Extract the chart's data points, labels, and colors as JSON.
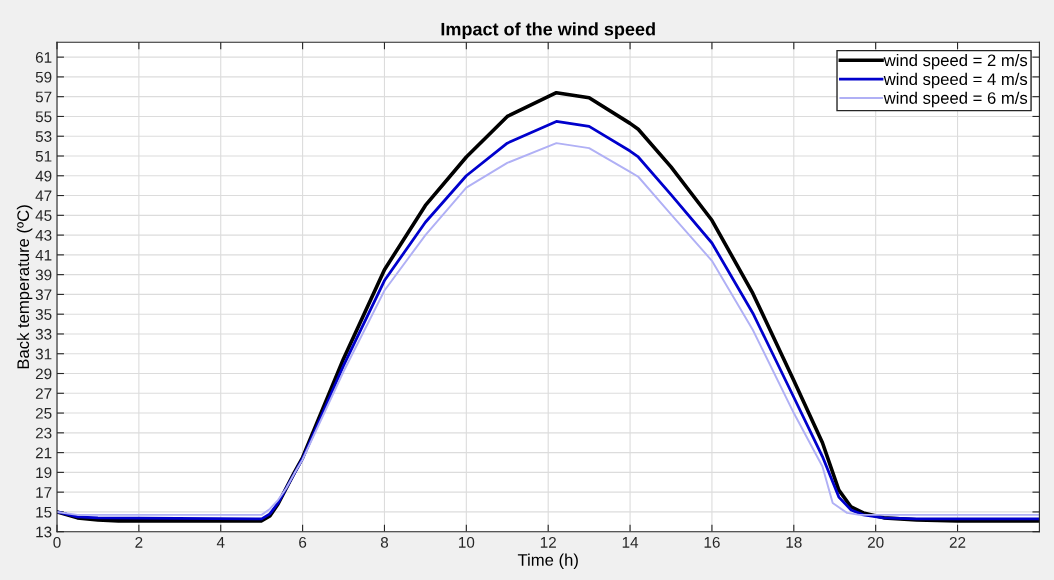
{
  "chart_data": {
    "type": "line",
    "title": "Impact of the wind speed",
    "xlabel": "Time (h)",
    "ylabel": "Back temperature (ºC)",
    "xlim": [
      0,
      24
    ],
    "ylim": [
      13,
      62.5
    ],
    "xticks": [
      0,
      2,
      4,
      6,
      8,
      10,
      12,
      14,
      16,
      18,
      20,
      22
    ],
    "yticks": [
      13,
      15,
      17,
      19,
      21,
      23,
      25,
      27,
      29,
      31,
      33,
      35,
      37,
      39,
      41,
      43,
      45,
      47,
      49,
      51,
      53,
      55,
      57,
      59,
      61
    ],
    "grid": true,
    "legend": "top right",
    "marker": "none",
    "line_style": "solid",
    "series": [
      {
        "name": "wind speed = 2 m/s",
        "color": "#000000",
        "x": [
          0,
          0.5,
          1,
          1.5,
          5,
          5.2,
          5.4,
          5.6,
          5.8,
          6,
          7,
          8,
          9,
          10,
          11,
          12.2,
          13,
          14,
          14.2,
          15,
          16,
          17,
          18,
          18.7,
          19.1,
          19.4,
          19.7,
          20.2,
          21,
          22,
          24
        ],
        "values": [
          15,
          14.4,
          14.2,
          14.1,
          14.1,
          14.6,
          15.8,
          17.4,
          19.0,
          20.5,
          30.5,
          39.5,
          46.0,
          50.9,
          55.0,
          57.4,
          56.9,
          54.3,
          53.7,
          49.9,
          44.5,
          37.1,
          28.3,
          22.0,
          17.2,
          15.5,
          14.9,
          14.4,
          14.2,
          14.1,
          14.1
        ]
      },
      {
        "name": "wind speed = 4 m/s",
        "color": "#0000cc",
        "x": [
          0,
          0.5,
          1,
          5,
          5.2,
          5.4,
          5.6,
          5.8,
          6,
          7,
          8,
          9,
          10,
          11,
          12.2,
          13,
          14,
          14.2,
          15,
          16,
          17,
          18,
          18.7,
          19.1,
          19.4,
          19.7,
          20.2,
          21,
          24
        ],
        "values": [
          15,
          14.5,
          14.4,
          14.3,
          14.8,
          15.9,
          17.4,
          18.9,
          20.4,
          29.8,
          38.4,
          44.3,
          49.0,
          52.3,
          54.5,
          54.0,
          51.5,
          50.9,
          47.1,
          42.2,
          35.1,
          26.6,
          20.6,
          16.5,
          15.2,
          14.7,
          14.4,
          14.3,
          14.3
        ]
      },
      {
        "name": "wind speed = 6 m/s",
        "color": "#b0b0f5",
        "x": [
          0,
          0.5,
          5,
          5.2,
          5.4,
          5.6,
          5.8,
          6,
          7,
          8,
          9,
          10,
          11,
          12.2,
          13,
          14,
          14.2,
          15,
          16,
          17,
          18,
          18.7,
          18.95,
          19.3,
          19.6,
          24
        ],
        "values": [
          15,
          14.7,
          14.7,
          15.3,
          16.2,
          17.4,
          18.9,
          20.3,
          29.2,
          37.4,
          43.0,
          47.8,
          50.3,
          52.3,
          51.8,
          49.4,
          48.9,
          45.1,
          40.4,
          33.4,
          25.0,
          19.6,
          15.9,
          14.9,
          14.7,
          14.7
        ]
      }
    ]
  }
}
